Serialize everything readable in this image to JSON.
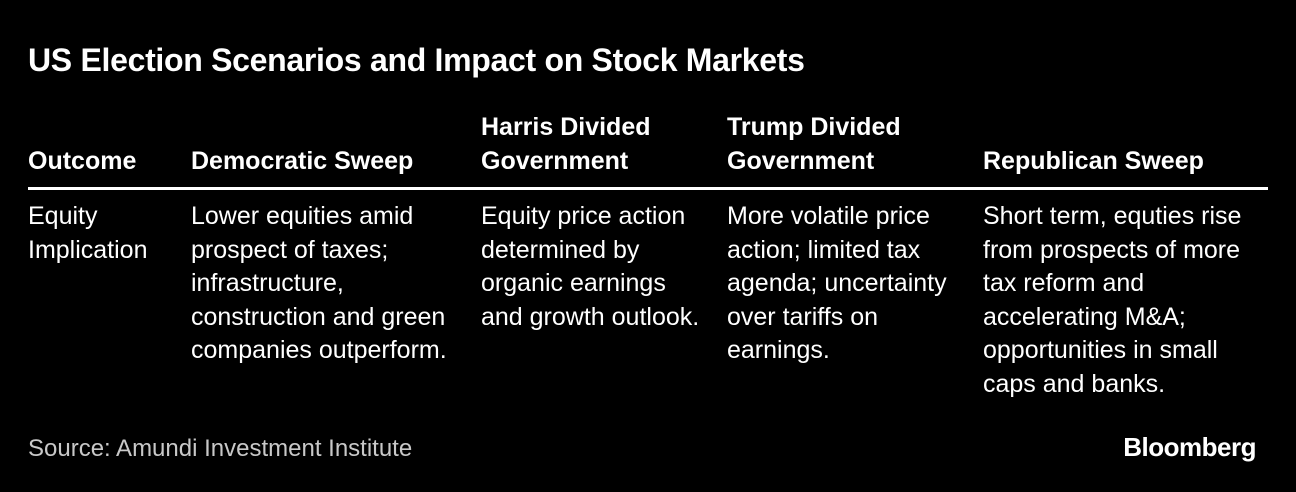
{
  "header": {
    "title": "US Election Scenarios and Impact on Stock Markets"
  },
  "table": {
    "columns": [
      "Outcome",
      "Democratic Sweep",
      "Harris Divided Government",
      "Trump Divided Government",
      "Republican Sweep"
    ],
    "rows": [
      [
        "Equity Implication",
        "Lower equities amid prospect of taxes; infrastructure, construction and green companies outperform.",
        "Equity price action determined by organic earnings and growth outlook.",
        "More volatile price action; limited tax agenda; uncertainty over tariffs on earnings.",
        "Short term, equties rise from prospects of more tax reform and accelerating M&A; opportunities in small caps and banks."
      ]
    ]
  },
  "footer": {
    "source": "Source: Amundi Investment Institute",
    "brand": "Bloomberg"
  }
}
